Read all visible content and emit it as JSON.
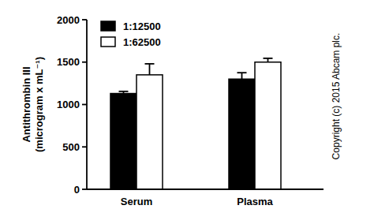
{
  "chart_data": {
    "type": "bar",
    "categories": [
      "Serum",
      "Plasma"
    ],
    "series": [
      {
        "name": "1:12500",
        "color": "#000000",
        "values": [
          1130,
          1300
        ],
        "errors": [
          25,
          75
        ]
      },
      {
        "name": "1:62500",
        "color": "#ffffff",
        "values": [
          1350,
          1500
        ],
        "errors": [
          130,
          45
        ]
      }
    ],
    "y_label": "Antithrombin III\n(microgram x mL⁻¹)",
    "annotations": [
      "Copyright (c) 2015 Abcam plc."
    ],
    "ylim": [
      0,
      2000
    ],
    "yticks": [
      0,
      500,
      1000,
      1500,
      2000
    ],
    "legend": "top-left",
    "grid": false
  }
}
